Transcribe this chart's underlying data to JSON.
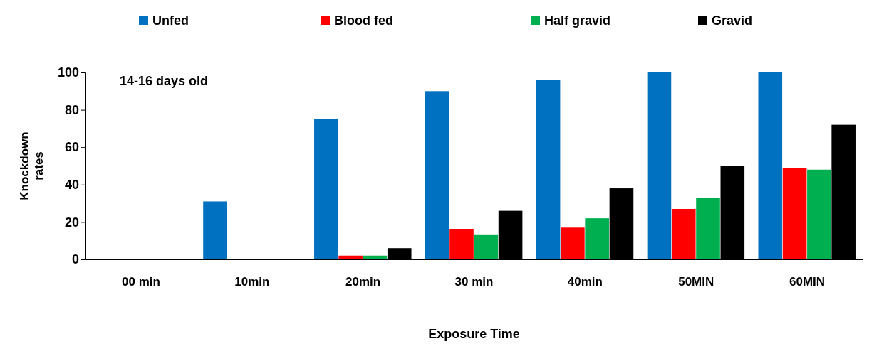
{
  "chart_data": {
    "type": "bar",
    "xlabel": "Exposure Time",
    "ylabel": "Knockdown rates",
    "annotations": [
      "14-16 days old"
    ],
    "categories": [
      "00 min",
      "10min",
      "20min",
      "30 min",
      "40min",
      "50MIN",
      "60MIN"
    ],
    "series": [
      {
        "name": "Unfed",
        "color": "#0070c0",
        "values": [
          0,
          31,
          75,
          90,
          96,
          100,
          100
        ]
      },
      {
        "name": "Blood fed",
        "color": "#ff0000",
        "values": [
          0,
          0,
          2,
          16,
          17,
          27,
          49
        ]
      },
      {
        "name": "Half gravid",
        "color": "#00b050",
        "values": [
          0,
          0,
          2,
          13,
          22,
          33,
          48
        ]
      },
      {
        "name": "Gravid",
        "color": "#000000",
        "values": [
          0,
          0,
          6,
          26,
          38,
          50,
          72
        ]
      }
    ],
    "ylim": [
      0,
      100
    ],
    "yticks": [
      0,
      20,
      40,
      60,
      80,
      100
    ],
    "legend": "top"
  }
}
